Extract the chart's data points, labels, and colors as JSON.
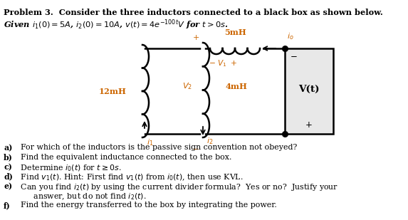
{
  "bg_color": "#ffffff",
  "text_color": "#000000",
  "orange_color": "#cc6600",
  "title_line1": "Problem 3.  Consider the three inductors connected to a black box as shown below.",
  "title_line2_plain": "Given ",
  "circuit": {
    "left_ind_label": "12mH",
    "mid_ind_label": "4mH",
    "top_ind_label": "5mH",
    "box_fill": "#e8e8e8",
    "box_label": "V(t)"
  },
  "q_lines": [
    [
      "a)",
      "  For which of the inductors is the passive sign convention not obeyed?"
    ],
    [
      "b)",
      "  Find the equivalent inductance connected to the box."
    ],
    [
      "c)",
      "  Determine $i_0(t)$ for $t \\geq 0s$."
    ],
    [
      "d)",
      "  Find $v_1(t)$. Hint: First find $v_1(t)$ from $i_0(t)$, then use KVL."
    ],
    [
      "e)",
      "  Can you find $i_2(t)$ by using the current divider formula?  Yes or no?  Justify your"
    ],
    [
      "",
      "       answer, but do not find $i_2(t)$."
    ],
    [
      "f)",
      "  Find the energy transferred to the box by integrating the power."
    ]
  ]
}
